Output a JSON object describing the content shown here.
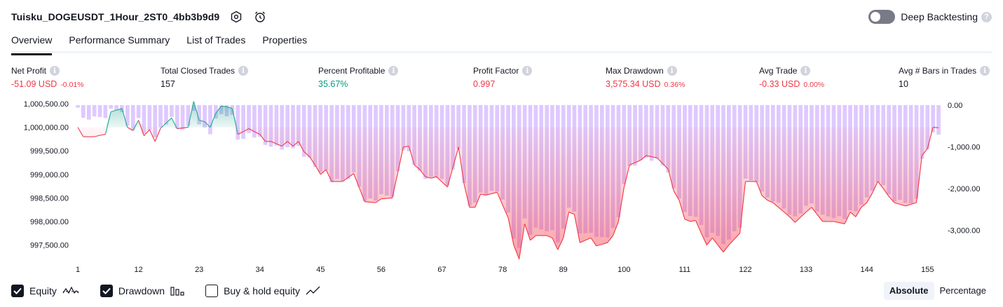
{
  "header": {
    "strategy_title": "Tuisku_DOGEUSDT_1Hour_2ST0_4bb3b9d9",
    "deep_backtesting_label": "Deep Backtesting",
    "deep_backtesting_on": false
  },
  "tabs": [
    {
      "label": "Overview",
      "active": true
    },
    {
      "label": "Performance Summary",
      "active": false
    },
    {
      "label": "List of Trades",
      "active": false
    },
    {
      "label": "Properties",
      "active": false
    }
  ],
  "stats": [
    {
      "label": "Net Profit",
      "value": "-51.09 USD",
      "sub": "-0.01%",
      "color": "#f23645"
    },
    {
      "label": "Total Closed Trades",
      "value": "157",
      "sub": "",
      "color": "#131722"
    },
    {
      "label": "Percent Profitable",
      "value": "35.67%",
      "sub": "",
      "color": "#089981"
    },
    {
      "label": "Profit Factor",
      "value": "0.997",
      "sub": "",
      "color": "#f23645"
    },
    {
      "label": "Max Drawdown",
      "value": "3,575.34 USD",
      "sub": "0.36%",
      "color": "#f23645"
    },
    {
      "label": "Avg Trade",
      "value": "-0.33 USD",
      "sub": "0.00%",
      "color": "#f23645"
    },
    {
      "label": "Avg # Bars in Trades",
      "value": "10",
      "sub": "",
      "color": "#131722"
    }
  ],
  "chart_data": {
    "type": "line",
    "x_ticks": [
      "1",
      "12",
      "23",
      "34",
      "45",
      "56",
      "67",
      "78",
      "89",
      "100",
      "111",
      "122",
      "133",
      "144",
      "155"
    ],
    "left_axis_ticks": [
      "1,000,500.00",
      "1,000,000.00",
      "999,500.00",
      "999,000.00",
      "998,500.00",
      "998,000.00",
      "997,500.00"
    ],
    "right_axis_ticks": [
      "0.00",
      "-1,000.00",
      "-2,000.00",
      "-3,000.00"
    ],
    "xlim": [
      1,
      157
    ],
    "equity_ylim": [
      997300,
      1000560
    ],
    "drawdown_ylim": [
      -3575.34,
      0
    ],
    "baseline": 1000000,
    "equity_anchors": [
      [
        1,
        1000000
      ],
      [
        2,
        999800
      ],
      [
        4,
        999800
      ],
      [
        5,
        999830
      ],
      [
        6,
        999850
      ],
      [
        7,
        1000330
      ],
      [
        9,
        1000400
      ],
      [
        10,
        1000000
      ],
      [
        11,
        999930
      ],
      [
        12,
        1000150
      ],
      [
        13,
        999820
      ],
      [
        14,
        999950
      ],
      [
        15,
        999700
      ],
      [
        16,
        999980
      ],
      [
        18,
        1000200
      ],
      [
        19,
        999970
      ],
      [
        21,
        1000000
      ],
      [
        22,
        1000550
      ],
      [
        23,
        1000150
      ],
      [
        24,
        1000120
      ],
      [
        25,
        1000000
      ],
      [
        26,
        1000300
      ],
      [
        27,
        1000450
      ],
      [
        28,
        1000440
      ],
      [
        29,
        1000400
      ],
      [
        30,
        999850
      ],
      [
        32,
        999970
      ],
      [
        34,
        999850
      ],
      [
        35,
        999700
      ],
      [
        36,
        999700
      ],
      [
        38,
        999600
      ],
      [
        39,
        999700
      ],
      [
        40,
        999600
      ],
      [
        41,
        999700
      ],
      [
        42,
        999480
      ],
      [
        43,
        999380
      ],
      [
        44,
        999200
      ],
      [
        45,
        999000
      ],
      [
        46,
        999100
      ],
      [
        47,
        998850
      ],
      [
        49,
        998850
      ],
      [
        51,
        999020
      ],
      [
        53,
        998420
      ],
      [
        55,
        998400
      ],
      [
        56,
        998480
      ],
      [
        58,
        998500
      ],
      [
        60,
        999580
      ],
      [
        61,
        999600
      ],
      [
        62,
        999200
      ],
      [
        63,
        999100
      ],
      [
        64,
        998950
      ],
      [
        65,
        998920
      ],
      [
        66,
        998950
      ],
      [
        68,
        998730
      ],
      [
        70,
        999580
      ],
      [
        71,
        998800
      ],
      [
        72,
        998300
      ],
      [
        73,
        998300
      ],
      [
        74,
        998580
      ],
      [
        75,
        998560
      ],
      [
        77,
        998620
      ],
      [
        79,
        998080
      ],
      [
        80,
        997500
      ],
      [
        81,
        997200
      ],
      [
        82,
        997950
      ],
      [
        83,
        997600
      ],
      [
        84,
        997700
      ],
      [
        86,
        997700
      ],
      [
        87,
        997650
      ],
      [
        88,
        997400
      ],
      [
        89,
        997650
      ],
      [
        90,
        998200
      ],
      [
        91,
        998150
      ],
      [
        92,
        997550
      ],
      [
        94,
        997650
      ],
      [
        95,
        997480
      ],
      [
        97,
        997550
      ],
      [
        98,
        997700
      ],
      [
        99,
        998000
      ],
      [
        100,
        998720
      ],
      [
        101,
        999200
      ],
      [
        102,
        999250
      ],
      [
        103,
        999300
      ],
      [
        104,
        999400
      ],
      [
        106,
        999350
      ],
      [
        108,
        999110
      ],
      [
        109,
        998650
      ],
      [
        110,
        998450
      ],
      [
        111,
        998050
      ],
      [
        112,
        998000
      ],
      [
        113,
        998020
      ],
      [
        114,
        997750
      ],
      [
        115,
        997500
      ],
      [
        116,
        997650
      ],
      [
        118,
        997350
      ],
      [
        119,
        997500
      ],
      [
        121,
        997750
      ],
      [
        122,
        998850
      ],
      [
        124,
        998850
      ],
      [
        125,
        998550
      ],
      [
        126,
        998450
      ],
      [
        127,
        998400
      ],
      [
        128,
        998300
      ],
      [
        130,
        998100
      ],
      [
        131,
        997980
      ],
      [
        133,
        998200
      ],
      [
        134,
        998300
      ],
      [
        136,
        998000
      ],
      [
        138,
        998000
      ],
      [
        140,
        997950
      ],
      [
        141,
        998200
      ],
      [
        142,
        998100
      ],
      [
        143,
        998300
      ],
      [
        144,
        998400
      ],
      [
        145,
        998600
      ],
      [
        146,
        998850
      ],
      [
        147,
        998700
      ],
      [
        148,
        998530
      ],
      [
        149,
        998400
      ],
      [
        151,
        998330
      ],
      [
        153,
        998400
      ],
      [
        154,
        999400
      ],
      [
        155,
        999550
      ],
      [
        156,
        1000000
      ],
      [
        157,
        999990
      ]
    ],
    "series": [
      {
        "name": "Equity",
        "enabled": true,
        "color": "#f23645",
        "fill_positive": "#089981"
      },
      {
        "name": "Drawdown",
        "enabled": true,
        "color": "#c59cff"
      },
      {
        "name": "Buy & hold equity",
        "enabled": false,
        "color": "#131722"
      }
    ]
  },
  "bottom": {
    "equity_label": "Equity",
    "drawdown_label": "Drawdown",
    "buyhold_label": "Buy & hold equity",
    "absolute_label": "Absolute",
    "percentage_label": "Percentage"
  }
}
